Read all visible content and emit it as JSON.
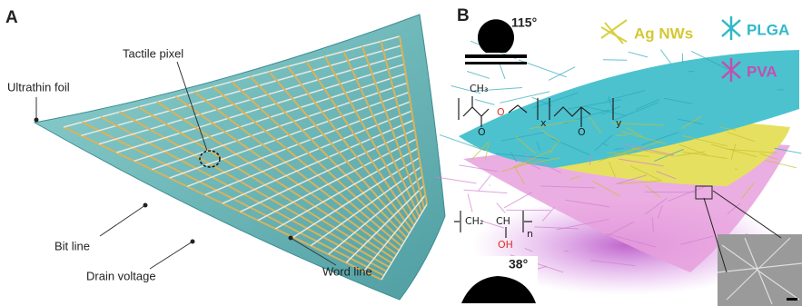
{
  "panel_a": {
    "label": "A",
    "annotations": {
      "tactile_pixel": "Tactile pixel",
      "ultrathin_foil": "Ultrathin foil",
      "bit_line": "Bit line",
      "drain_voltage": "Drain voltage",
      "word_line": "Word line"
    }
  },
  "panel_b": {
    "label": "B",
    "contact_angle_top": "115°",
    "contact_angle_bottom": "38°",
    "legend": {
      "ag_nws": "Ag NWs",
      "plga": "PLGA",
      "pva": "PVA"
    },
    "plga_formula": {
      "methyl": "CH₃",
      "oxygen_1": "O",
      "carbonyl_1": "O",
      "carbonyl_2": "O",
      "x": "x",
      "y": "y"
    },
    "pva_formula": {
      "ch2": "CH₂",
      "ch": "CH",
      "n": "n",
      "oh": "OH"
    }
  }
}
